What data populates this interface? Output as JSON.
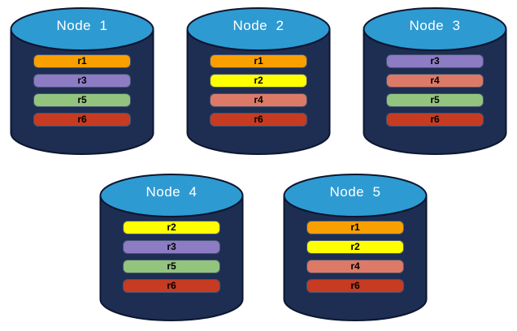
{
  "diagram": {
    "description": "replica distribution across database nodes",
    "background": "#ffffff"
  },
  "colors": {
    "cylinder_body": "#1d2e52",
    "cylinder_outline": "#0d1630",
    "cylinder_top": "#2e9ad2",
    "replica_colors": {
      "r1": "#f9a000",
      "r2": "#ffff00",
      "r3": "#8d7cc4",
      "r4": "#dd7a67",
      "r5": "#93c47d",
      "r6": "#c63b22"
    }
  },
  "nodes": [
    {
      "label": "Node  1",
      "replicas": [
        "r1",
        "r3",
        "r5",
        "r6"
      ]
    },
    {
      "label": "Node  2",
      "replicas": [
        "r1",
        "r2",
        "r4",
        "r6"
      ]
    },
    {
      "label": "Node  3",
      "replicas": [
        "r3",
        "r4",
        "r5",
        "r6"
      ]
    },
    {
      "label": "Node  4",
      "replicas": [
        "r2",
        "r3",
        "r5",
        "r6"
      ]
    },
    {
      "label": "Node  5",
      "replicas": [
        "r1",
        "r2",
        "r4",
        "r6"
      ]
    }
  ]
}
